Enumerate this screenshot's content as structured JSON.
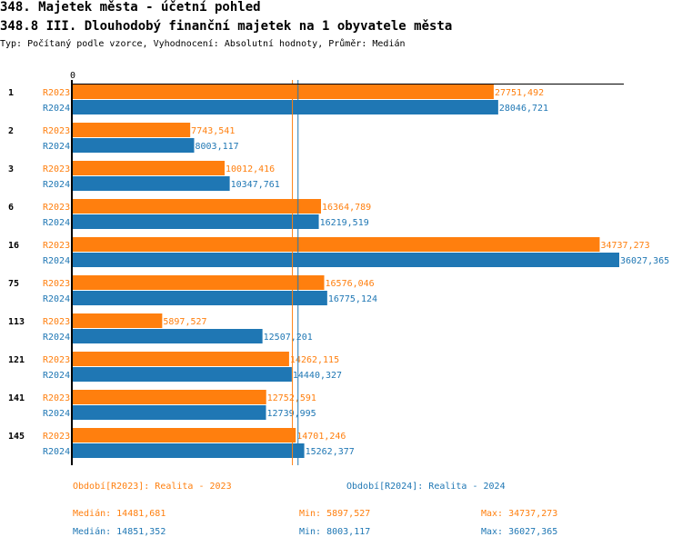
{
  "title": "348. Majetek města - účetní pohled",
  "subtitle": "348.8 III. Dlouhodobý finanční majetek na 1 obyvatele města",
  "description": "Typ: Počítaný podle vzorce, Vyhodnocení: Absolutní hodnoty, Průměr: Medián",
  "colors": {
    "R2023": "#ff7f0e",
    "R2024": "#1f77b4"
  },
  "chart_data": {
    "type": "bar",
    "orientation": "horizontal",
    "x_tick_labels": [
      "0"
    ],
    "xlim": [
      0,
      36027.365
    ],
    "categories": [
      "1",
      "2",
      "3",
      "6",
      "16",
      "75",
      "113",
      "121",
      "141",
      "145"
    ],
    "series": [
      {
        "name": "R2023",
        "labels": [
          "27751,492",
          "7743,541",
          "10012,416",
          "16364,789",
          "34737,273",
          "16576,046",
          "5897,527",
          "14262,115",
          "12752,591",
          "14701,246"
        ],
        "values": [
          27751.492,
          7743.541,
          10012.416,
          16364.789,
          34737.273,
          16576.046,
          5897.527,
          14262.115,
          12752.591,
          14701.246
        ],
        "median": 14481.681
      },
      {
        "name": "R2024",
        "labels": [
          "28046,721",
          "8003,117",
          "10347,761",
          "16219,519",
          "36027,365",
          "16775,124",
          "12507,201",
          "14440,327",
          "12739,995",
          "15262,377"
        ],
        "values": [
          28046.721,
          8003.117,
          10347.761,
          16219.519,
          36027.365,
          16775.124,
          12507.201,
          14440.327,
          12739.995,
          15262.377
        ],
        "median": 14851.352
      }
    ]
  },
  "legend": {
    "r2023": {
      "label": "Období[R2023]: Realita - 2023",
      "median": "Medián: 14481,681",
      "min": "Min: 5897,527",
      "max": "Max: 34737,273"
    },
    "r2024": {
      "label": "Období[R2024]: Realita - 2024",
      "median": "Medián: 14851,352",
      "min": "Min: 8003,117",
      "max": "Max: 36027,365"
    }
  }
}
